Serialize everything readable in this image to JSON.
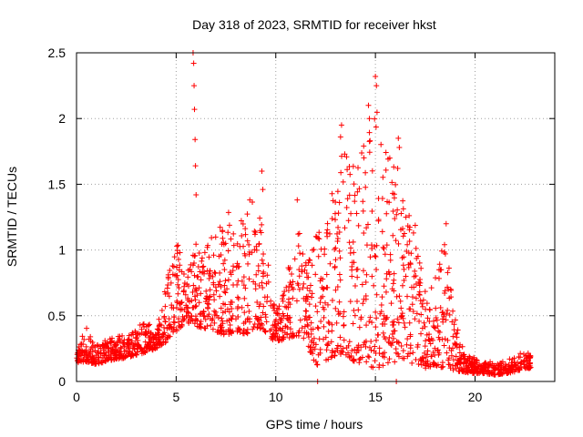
{
  "chart_data": {
    "type": "scatter",
    "title": "Day 318 of 2023, SRMTID for receiver hkst",
    "xlabel": "GPS time / hours",
    "ylabel": "SRMTID / TECUs",
    "xlim": [
      0,
      24
    ],
    "ylim": [
      0,
      2.5
    ],
    "x_ticks": [
      0,
      5,
      10,
      15,
      20
    ],
    "y_ticks": [
      0,
      0.5,
      1,
      1.5,
      2,
      2.5
    ],
    "x_tick_labels": [
      "0",
      "5",
      "10",
      "15",
      "20"
    ],
    "y_tick_labels": [
      "0",
      "0.5",
      "1",
      "1.5",
      "2",
      "2.5"
    ],
    "grid": true,
    "marker": "+",
    "color": "#ff0000",
    "envelope": {
      "hours": [
        0,
        0.5,
        1,
        1.5,
        2,
        2.5,
        3,
        3.5,
        4,
        4.5,
        5,
        5.5,
        6,
        6.5,
        7,
        7.5,
        8,
        8.5,
        9,
        9.5,
        10,
        10.5,
        11,
        11.5,
        12,
        12.5,
        13,
        13.5,
        14,
        14.5,
        15,
        15.5,
        16,
        16.5,
        17,
        17.5,
        18,
        18.5,
        19,
        19.5,
        20,
        20.5,
        21,
        21.5,
        22,
        22.5,
        22.8
      ],
      "low": [
        0.14,
        0.15,
        0.13,
        0.15,
        0.17,
        0.18,
        0.2,
        0.22,
        0.25,
        0.3,
        0.38,
        0.45,
        0.42,
        0.4,
        0.38,
        0.35,
        0.38,
        0.35,
        0.4,
        0.35,
        0.3,
        0.32,
        0.35,
        0.3,
        0.12,
        0.15,
        0.2,
        0.18,
        0.15,
        0.12,
        0.1,
        0.12,
        0.15,
        0.15,
        0.12,
        0.1,
        0.12,
        0.1,
        0.08,
        0.07,
        0.06,
        0.06,
        0.05,
        0.06,
        0.07,
        0.1,
        0.1
      ],
      "high": [
        0.25,
        0.42,
        0.3,
        0.32,
        0.35,
        0.35,
        0.42,
        0.45,
        0.4,
        0.75,
        1.1,
        0.8,
        1.05,
        1.0,
        1.2,
        1.4,
        1.1,
        1.35,
        1.45,
        1.0,
        0.6,
        0.7,
        1.5,
        0.9,
        1.1,
        1.3,
        1.5,
        1.9,
        1.6,
        2.0,
        2.1,
        1.9,
        1.8,
        1.3,
        1.2,
        0.7,
        0.8,
        1.1,
        0.5,
        0.2,
        0.18,
        0.15,
        0.15,
        0.15,
        0.2,
        0.25,
        0.2
      ]
    },
    "outliers": [
      {
        "x": 5.85,
        "y": 2.5
      },
      {
        "x": 5.88,
        "y": 2.42
      },
      {
        "x": 5.9,
        "y": 2.25
      },
      {
        "x": 5.92,
        "y": 2.07
      },
      {
        "x": 5.95,
        "y": 1.84
      },
      {
        "x": 5.97,
        "y": 1.64
      },
      {
        "x": 6.0,
        "y": 1.42
      },
      {
        "x": 15.0,
        "y": 2.32
      },
      {
        "x": 15.05,
        "y": 2.25
      },
      {
        "x": 14.65,
        "y": 2.1
      },
      {
        "x": 14.7,
        "y": 2.0
      },
      {
        "x": 13.3,
        "y": 1.95
      },
      {
        "x": 13.25,
        "y": 1.86
      },
      {
        "x": 9.3,
        "y": 1.6
      },
      {
        "x": 9.35,
        "y": 1.46
      },
      {
        "x": 16.15,
        "y": 1.85
      },
      {
        "x": 16.2,
        "y": 1.78
      },
      {
        "x": 18.55,
        "y": 1.2
      },
      {
        "x": 18.3,
        "y": 0.85
      },
      {
        "x": 12.1,
        "y": 0.0
      },
      {
        "x": 16.05,
        "y": 0.0
      }
    ]
  }
}
